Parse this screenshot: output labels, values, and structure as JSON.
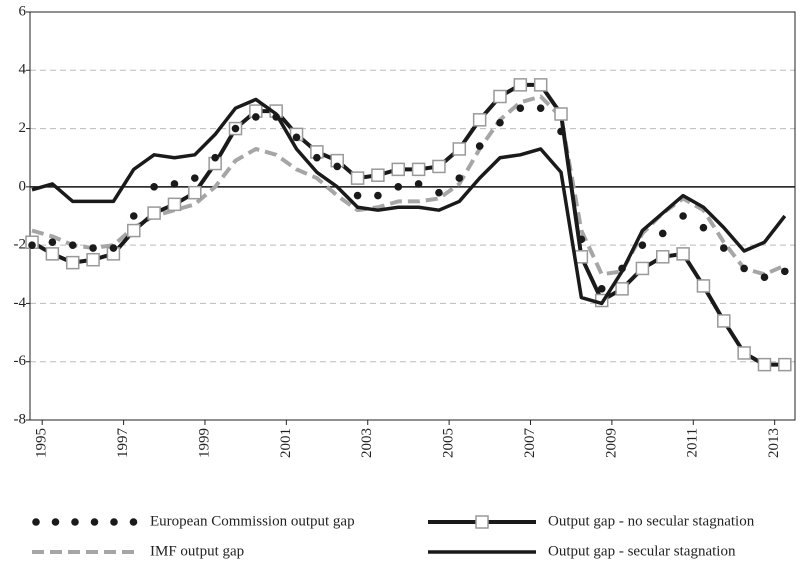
{
  "chart_data": {
    "type": "line",
    "x": [
      1994.75,
      1995.25,
      1995.75,
      1996.25,
      1996.75,
      1997.25,
      1997.75,
      1998.25,
      1998.75,
      1999.25,
      1999.75,
      2000.25,
      2000.75,
      2001.25,
      2001.75,
      2002.25,
      2002.75,
      2003.25,
      2003.75,
      2004.25,
      2004.75,
      2005.25,
      2005.75,
      2006.25,
      2006.75,
      2007.25,
      2007.75,
      2008.25,
      2008.75,
      2009.25,
      2009.75,
      2010.25,
      2010.75,
      2011.25,
      2011.75,
      2012.25,
      2012.75,
      2013.25
    ],
    "series": [
      {
        "name": "European Commission output gap",
        "color": "#1a1a1a",
        "style": "dots",
        "values": [
          -2.0,
          -1.9,
          -2.0,
          -2.1,
          -2.1,
          -1.0,
          0.0,
          0.1,
          0.3,
          1.0,
          2.0,
          2.4,
          2.4,
          1.7,
          1.0,
          0.7,
          -0.3,
          -0.3,
          0.0,
          0.1,
          -0.2,
          0.3,
          1.4,
          2.2,
          2.7,
          2.7,
          1.9,
          -1.8,
          -3.5,
          -2.8,
          -2.0,
          -1.6,
          -1.0,
          -1.4,
          -2.1,
          -2.8,
          -3.1,
          -2.9
        ]
      },
      {
        "name": "IMF output gap",
        "color": "#a6a6a6",
        "style": "dashed",
        "values": [
          -1.5,
          -1.7,
          -2.0,
          -2.1,
          -2.0,
          -1.4,
          -1.0,
          -0.8,
          -0.6,
          0.0,
          0.9,
          1.3,
          1.1,
          0.6,
          0.3,
          -0.3,
          -0.8,
          -0.7,
          -0.5,
          -0.5,
          -0.4,
          0.1,
          1.3,
          2.3,
          2.9,
          3.1,
          2.4,
          -1.5,
          -3.0,
          -2.9,
          -1.6,
          -0.9,
          -0.4,
          -0.8,
          -1.9,
          -2.8,
          -3.0,
          -2.7
        ]
      },
      {
        "name": "Output gap - no secular stagnation",
        "color": "#1a1a1a",
        "style": "squares",
        "values": [
          -1.9,
          -2.3,
          -2.6,
          -2.5,
          -2.3,
          -1.5,
          -0.9,
          -0.6,
          -0.2,
          0.8,
          2.0,
          2.6,
          2.6,
          1.8,
          1.2,
          0.9,
          0.3,
          0.4,
          0.6,
          0.6,
          0.7,
          1.3,
          2.3,
          3.1,
          3.5,
          3.5,
          2.5,
          -2.4,
          -3.9,
          -3.5,
          -2.8,
          -2.4,
          -2.3,
          -3.4,
          -4.6,
          -5.7,
          -6.1,
          -6.1
        ]
      },
      {
        "name": "Output gap - secular stagnation",
        "color": "#1a1a1a",
        "style": "solid",
        "values": [
          -0.1,
          0.1,
          -0.5,
          -0.5,
          -0.5,
          0.6,
          1.1,
          1.0,
          1.1,
          1.8,
          2.7,
          3.0,
          2.5,
          1.3,
          0.5,
          0.0,
          -0.7,
          -0.8,
          -0.7,
          -0.7,
          -0.8,
          -0.5,
          0.3,
          1.0,
          1.1,
          1.3,
          0.5,
          -3.8,
          -4.0,
          -2.9,
          -1.5,
          -0.9,
          -0.3,
          -0.7,
          -1.4,
          -2.2,
          -1.9,
          -1.0
        ]
      }
    ],
    "xlim": [
      1994.7,
      2013.5
    ],
    "xticks": [
      1995,
      1997,
      1999,
      2001,
      2003,
      2005,
      2007,
      2009,
      2011,
      2013
    ],
    "ylim": [
      -8,
      6
    ],
    "yticks": [
      -8,
      -6,
      -4,
      -2,
      0,
      2,
      4,
      6
    ],
    "grid": true,
    "legend": "bottom"
  }
}
